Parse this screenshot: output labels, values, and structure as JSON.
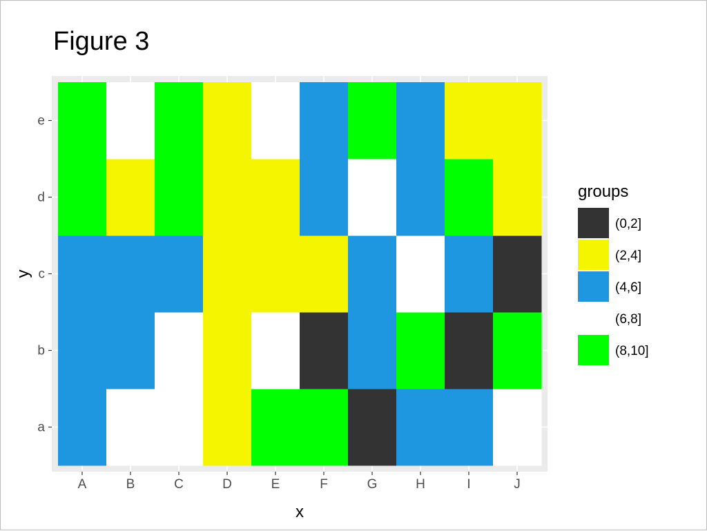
{
  "page": {
    "title": "Figure 3"
  },
  "chart_data": {
    "type": "heatmap",
    "title": "Figure 3",
    "xlabel": "x",
    "ylabel": "y",
    "x_categories": [
      "A",
      "B",
      "C",
      "D",
      "E",
      "F",
      "G",
      "H",
      "I",
      "J"
    ],
    "y_categories": [
      "a",
      "b",
      "c",
      "d",
      "e"
    ],
    "legend": {
      "title": "groups",
      "placement": "right",
      "entries": [
        {
          "label": "(0,2]",
          "color": "#333333"
        },
        {
          "label": "(2,4]",
          "color": "#f5f500"
        },
        {
          "label": "(4,6]",
          "color": "#1e96e0"
        },
        {
          "label": "(6,8]",
          "color": "#ffffff"
        },
        {
          "label": "(8,10]",
          "color": "#00ff00"
        }
      ]
    },
    "panel_background": "#ebebeb",
    "grid": true,
    "cells": [
      {
        "x": "A",
        "y": "a",
        "group": "(4,6]"
      },
      {
        "x": "B",
        "y": "a",
        "group": "(6,8]"
      },
      {
        "x": "C",
        "y": "a",
        "group": "(6,8]"
      },
      {
        "x": "D",
        "y": "a",
        "group": "(2,4]"
      },
      {
        "x": "E",
        "y": "a",
        "group": "(8,10]"
      },
      {
        "x": "F",
        "y": "a",
        "group": "(8,10]"
      },
      {
        "x": "G",
        "y": "a",
        "group": "(0,2]"
      },
      {
        "x": "H",
        "y": "a",
        "group": "(4,6]"
      },
      {
        "x": "I",
        "y": "a",
        "group": "(4,6]"
      },
      {
        "x": "J",
        "y": "a",
        "group": "(6,8]"
      },
      {
        "x": "A",
        "y": "b",
        "group": "(4,6]"
      },
      {
        "x": "B",
        "y": "b",
        "group": "(4,6]"
      },
      {
        "x": "C",
        "y": "b",
        "group": "(6,8]"
      },
      {
        "x": "D",
        "y": "b",
        "group": "(2,4]"
      },
      {
        "x": "E",
        "y": "b",
        "group": "(6,8]"
      },
      {
        "x": "F",
        "y": "b",
        "group": "(0,2]"
      },
      {
        "x": "G",
        "y": "b",
        "group": "(4,6]"
      },
      {
        "x": "H",
        "y": "b",
        "group": "(8,10]"
      },
      {
        "x": "I",
        "y": "b",
        "group": "(0,2]"
      },
      {
        "x": "J",
        "y": "b",
        "group": "(8,10]"
      },
      {
        "x": "A",
        "y": "c",
        "group": "(4,6]"
      },
      {
        "x": "B",
        "y": "c",
        "group": "(4,6]"
      },
      {
        "x": "C",
        "y": "c",
        "group": "(4,6]"
      },
      {
        "x": "D",
        "y": "c",
        "group": "(2,4]"
      },
      {
        "x": "E",
        "y": "c",
        "group": "(2,4]"
      },
      {
        "x": "F",
        "y": "c",
        "group": "(2,4]"
      },
      {
        "x": "G",
        "y": "c",
        "group": "(4,6]"
      },
      {
        "x": "H",
        "y": "c",
        "group": "(6,8]"
      },
      {
        "x": "I",
        "y": "c",
        "group": "(4,6]"
      },
      {
        "x": "J",
        "y": "c",
        "group": "(0,2]"
      },
      {
        "x": "A",
        "y": "d",
        "group": "(8,10]"
      },
      {
        "x": "B",
        "y": "d",
        "group": "(2,4]"
      },
      {
        "x": "C",
        "y": "d",
        "group": "(8,10]"
      },
      {
        "x": "D",
        "y": "d",
        "group": "(2,4]"
      },
      {
        "x": "E",
        "y": "d",
        "group": "(2,4]"
      },
      {
        "x": "F",
        "y": "d",
        "group": "(4,6]"
      },
      {
        "x": "G",
        "y": "d",
        "group": "(6,8]"
      },
      {
        "x": "H",
        "y": "d",
        "group": "(4,6]"
      },
      {
        "x": "I",
        "y": "d",
        "group": "(8,10]"
      },
      {
        "x": "J",
        "y": "d",
        "group": "(2,4]"
      },
      {
        "x": "A",
        "y": "e",
        "group": "(8,10]"
      },
      {
        "x": "B",
        "y": "e",
        "group": "(6,8]"
      },
      {
        "x": "C",
        "y": "e",
        "group": "(8,10]"
      },
      {
        "x": "D",
        "y": "e",
        "group": "(2,4]"
      },
      {
        "x": "E",
        "y": "e",
        "group": "(6,8]"
      },
      {
        "x": "F",
        "y": "e",
        "group": "(4,6]"
      },
      {
        "x": "G",
        "y": "e",
        "group": "(8,10]"
      },
      {
        "x": "H",
        "y": "e",
        "group": "(4,6]"
      },
      {
        "x": "I",
        "y": "e",
        "group": "(2,4]"
      },
      {
        "x": "J",
        "y": "e",
        "group": "(2,4]"
      }
    ]
  }
}
